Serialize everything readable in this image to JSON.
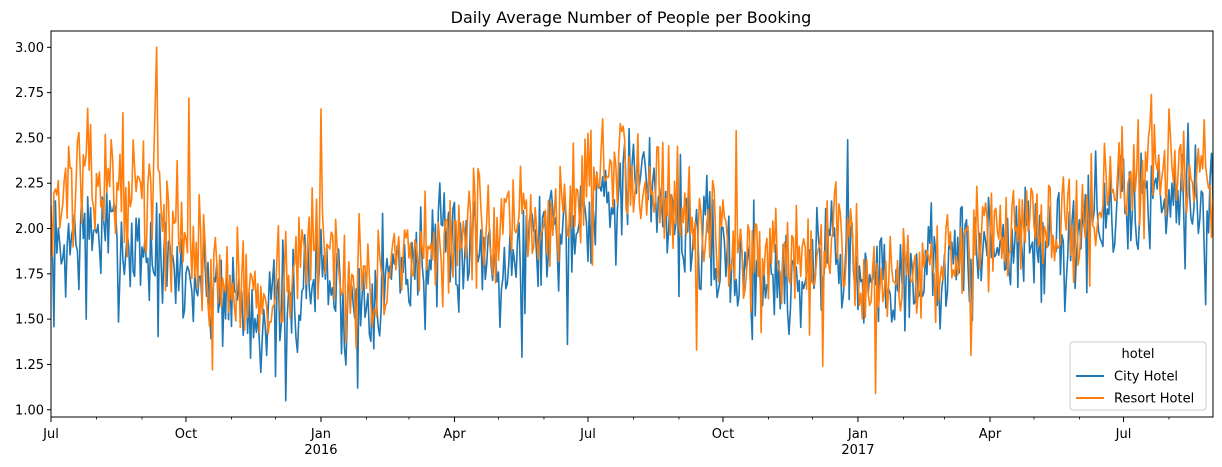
{
  "chart_data": {
    "type": "line",
    "title": "Daily Average Number of People per Booking",
    "xlabel": "",
    "ylabel": "",
    "x_range": [
      "2015-07-01",
      "2017-08-31"
    ],
    "ylim": [
      0.96,
      3.09
    ],
    "grid": false,
    "legend": {
      "title": "hotel",
      "placement": "bottom-right"
    },
    "x_ticks": [
      {
        "date": "2015-07-01",
        "label": "Jul",
        "sublabel": ""
      },
      {
        "date": "2015-10-01",
        "label": "Oct",
        "sublabel": ""
      },
      {
        "date": "2016-01-01",
        "label": "Jan",
        "sublabel": "2016"
      },
      {
        "date": "2016-04-01",
        "label": "Apr",
        "sublabel": ""
      },
      {
        "date": "2016-07-01",
        "label": "Jul",
        "sublabel": ""
      },
      {
        "date": "2016-10-01",
        "label": "Oct",
        "sublabel": ""
      },
      {
        "date": "2017-01-01",
        "label": "Jan",
        "sublabel": "2017"
      },
      {
        "date": "2017-04-01",
        "label": "Apr",
        "sublabel": ""
      },
      {
        "date": "2017-07-01",
        "label": "Jul",
        "sublabel": ""
      }
    ],
    "y_ticks": [
      "1.00",
      "1.25",
      "1.50",
      "1.75",
      "2.00",
      "2.25",
      "2.50",
      "2.75",
      "3.00"
    ],
    "series": [
      {
        "name": "City Hotel",
        "color": "#1f77b4",
        "points": [
          [
            "2015-07-01",
            1.78
          ],
          [
            "2015-07-15",
            1.95
          ],
          [
            "2015-08-01",
            2.0
          ],
          [
            "2015-08-15",
            1.92
          ],
          [
            "2015-09-01",
            1.9
          ],
          [
            "2015-09-15",
            1.78
          ],
          [
            "2015-10-01",
            1.72
          ],
          [
            "2015-10-15",
            1.7
          ],
          [
            "2015-11-01",
            1.65
          ],
          [
            "2015-11-15",
            1.55
          ],
          [
            "2015-12-01",
            1.5
          ],
          [
            "2015-12-15",
            1.6
          ],
          [
            "2016-01-01",
            1.82
          ],
          [
            "2016-01-15",
            1.58
          ],
          [
            "2016-02-01",
            1.65
          ],
          [
            "2016-02-15",
            1.75
          ],
          [
            "2016-03-01",
            1.82
          ],
          [
            "2016-03-15",
            1.8
          ],
          [
            "2016-04-01",
            1.9
          ],
          [
            "2016-04-15",
            1.92
          ],
          [
            "2016-05-01",
            1.85
          ],
          [
            "2016-05-15",
            1.88
          ],
          [
            "2016-06-01",
            1.98
          ],
          [
            "2016-06-15",
            2.02
          ],
          [
            "2016-07-01",
            2.15
          ],
          [
            "2016-07-15",
            2.2
          ],
          [
            "2016-08-01",
            2.25
          ],
          [
            "2016-08-15",
            2.22
          ],
          [
            "2016-09-01",
            2.05
          ],
          [
            "2016-09-15",
            1.9
          ],
          [
            "2016-10-01",
            1.85
          ],
          [
            "2016-10-15",
            1.78
          ],
          [
            "2016-11-01",
            1.75
          ],
          [
            "2016-11-15",
            1.7
          ],
          [
            "2016-12-01",
            1.78
          ],
          [
            "2016-12-15",
            1.95
          ],
          [
            "2017-01-01",
            1.7
          ],
          [
            "2017-01-15",
            1.72
          ],
          [
            "2017-02-01",
            1.75
          ],
          [
            "2017-02-15",
            1.8
          ],
          [
            "2017-03-01",
            1.78
          ],
          [
            "2017-03-15",
            1.82
          ],
          [
            "2017-04-01",
            1.92
          ],
          [
            "2017-04-15",
            1.95
          ],
          [
            "2017-05-01",
            1.88
          ],
          [
            "2017-05-15",
            1.9
          ],
          [
            "2017-06-01",
            2.0
          ],
          [
            "2017-06-15",
            2.05
          ],
          [
            "2017-07-01",
            2.12
          ],
          [
            "2017-07-15",
            2.18
          ],
          [
            "2017-08-01",
            2.22
          ],
          [
            "2017-08-15",
            2.25
          ],
          [
            "2017-08-31",
            2.12
          ]
        ],
        "amplitude": 0.17,
        "seed": 7
      },
      {
        "name": "Resort Hotel",
        "color": "#ff7f0e",
        "points": [
          [
            "2015-07-01",
            2.15
          ],
          [
            "2015-07-15",
            2.22
          ],
          [
            "2015-08-01",
            2.28
          ],
          [
            "2015-08-15",
            2.25
          ],
          [
            "2015-09-01",
            2.2
          ],
          [
            "2015-09-15",
            2.08
          ],
          [
            "2015-10-01",
            1.98
          ],
          [
            "2015-10-15",
            1.78
          ],
          [
            "2015-11-01",
            1.68
          ],
          [
            "2015-11-15",
            1.65
          ],
          [
            "2015-12-01",
            1.68
          ],
          [
            "2015-12-15",
            1.8
          ],
          [
            "2016-01-01",
            1.95
          ],
          [
            "2016-01-15",
            1.78
          ],
          [
            "2016-02-01",
            1.72
          ],
          [
            "2016-02-15",
            1.7
          ],
          [
            "2016-03-01",
            1.78
          ],
          [
            "2016-03-15",
            1.82
          ],
          [
            "2016-04-01",
            1.98
          ],
          [
            "2016-04-15",
            2.02
          ],
          [
            "2016-05-01",
            1.95
          ],
          [
            "2016-05-15",
            1.98
          ],
          [
            "2016-06-01",
            2.05
          ],
          [
            "2016-06-15",
            2.1
          ],
          [
            "2016-07-01",
            2.25
          ],
          [
            "2016-07-15",
            2.3
          ],
          [
            "2016-08-01",
            2.35
          ],
          [
            "2016-08-15",
            2.3
          ],
          [
            "2016-09-01",
            2.15
          ],
          [
            "2016-09-15",
            2.0
          ],
          [
            "2016-10-01",
            1.98
          ],
          [
            "2016-10-15",
            1.85
          ],
          [
            "2016-11-01",
            1.75
          ],
          [
            "2016-11-15",
            1.72
          ],
          [
            "2016-12-01",
            1.78
          ],
          [
            "2016-12-15",
            2.0
          ],
          [
            "2017-01-01",
            1.78
          ],
          [
            "2017-01-15",
            1.72
          ],
          [
            "2017-02-01",
            1.78
          ],
          [
            "2017-02-15",
            1.82
          ],
          [
            "2017-03-01",
            1.8
          ],
          [
            "2017-03-15",
            1.82
          ],
          [
            "2017-04-01",
            1.95
          ],
          [
            "2017-04-15",
            2.02
          ],
          [
            "2017-05-01",
            1.95
          ],
          [
            "2017-05-15",
            1.98
          ],
          [
            "2017-06-01",
            2.05
          ],
          [
            "2017-06-15",
            2.12
          ],
          [
            "2017-07-01",
            2.25
          ],
          [
            "2017-07-15",
            2.32
          ],
          [
            "2017-08-01",
            2.38
          ],
          [
            "2017-08-15",
            2.35
          ],
          [
            "2017-08-31",
            2.25
          ]
        ],
        "amplitude": 0.16,
        "seed": 13
      }
    ],
    "peaks": [
      {
        "series": "Resort Hotel",
        "date": "2015-09-11",
        "value": 3.0
      },
      {
        "series": "Resort Hotel",
        "date": "2015-09-10",
        "value": 2.68
      },
      {
        "series": "Resort Hotel",
        "date": "2015-10-03",
        "value": 2.72
      },
      {
        "series": "Resort Hotel",
        "date": "2016-01-01",
        "value": 2.66
      },
      {
        "series": "Resort Hotel",
        "date": "2015-07-20",
        "value": 2.53
      },
      {
        "series": "Resort Hotel",
        "date": "2016-10-10",
        "value": 2.54
      },
      {
        "series": "Resort Hotel",
        "date": "2017-07-20",
        "value": 2.74
      },
      {
        "series": "Resort Hotel",
        "date": "2017-08-25",
        "value": 2.6
      },
      {
        "series": "Resort Hotel",
        "date": "2016-09-13",
        "value": 1.33
      },
      {
        "series": "Resort Hotel",
        "date": "2016-12-08",
        "value": 1.24
      },
      {
        "series": "Resort Hotel",
        "date": "2017-01-13",
        "value": 1.09
      },
      {
        "series": "Resort Hotel",
        "date": "2015-10-19",
        "value": 1.22
      },
      {
        "series": "Resort Hotel",
        "date": "2017-03-19",
        "value": 1.3
      },
      {
        "series": "City Hotel",
        "date": "2015-12-08",
        "value": 1.05
      },
      {
        "series": "City Hotel",
        "date": "2016-01-26",
        "value": 1.12
      },
      {
        "series": "City Hotel",
        "date": "2016-12-25",
        "value": 2.49
      },
      {
        "series": "City Hotel",
        "date": "2015-07-25",
        "value": 1.5
      },
      {
        "series": "City Hotel",
        "date": "2017-08-26",
        "value": 1.58
      },
      {
        "series": "City Hotel",
        "date": "2016-05-17",
        "value": 1.29
      },
      {
        "series": "City Hotel",
        "date": "2016-06-17",
        "value": 1.36
      }
    ]
  }
}
